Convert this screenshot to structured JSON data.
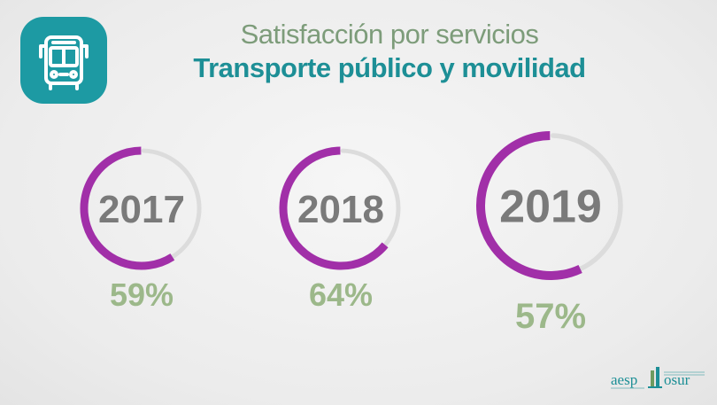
{
  "header": {
    "title_line1": "Satisfacción por servicios",
    "title_line2": "Transporte público y movilidad",
    "icon": "bus-icon",
    "badge_color": "#1d9aa3"
  },
  "colors": {
    "arc_filled": "#a12fa8",
    "arc_track": "#dcdcdc",
    "year_text": "#7a7a7a",
    "percent_text": "#9cb88a"
  },
  "chart_data": {
    "type": "pie",
    "categories": [
      "2017",
      "2018",
      "2019"
    ],
    "values": [
      59,
      64,
      57
    ],
    "value_labels": [
      "59%",
      "64%",
      "57%"
    ],
    "unit": "%",
    "title": "Satisfacción por servicios",
    "subtitle": "Transporte público y movilidad"
  },
  "footer": {
    "logo_text_left": "aesp",
    "logo_text_right": "osur"
  }
}
